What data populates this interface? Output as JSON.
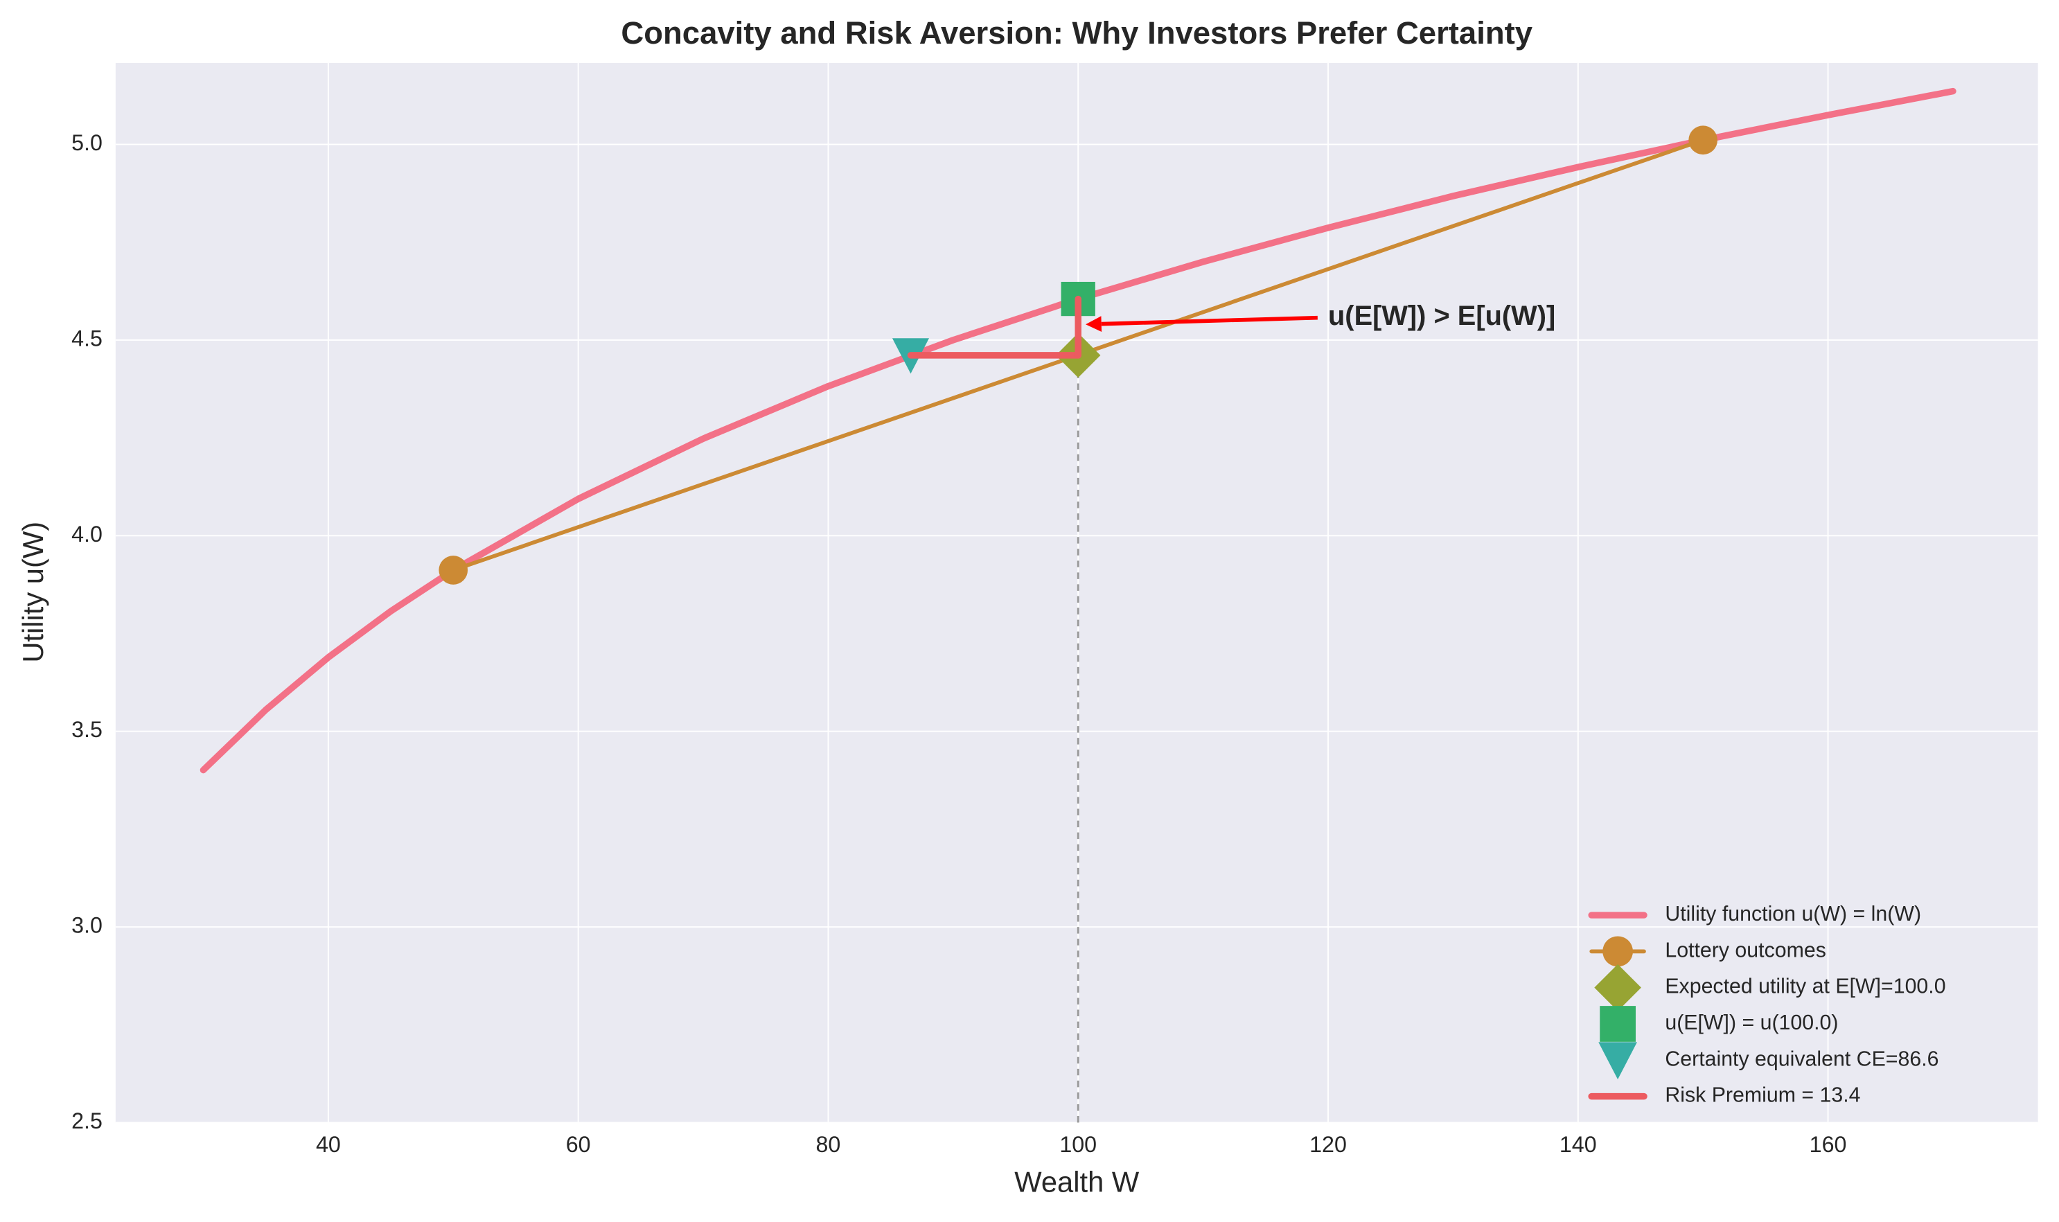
{
  "chart_data": {
    "type": "line",
    "title": "Concavity and Risk Aversion: Why Investors Prefer Certainty",
    "xlabel": "Wealth W",
    "ylabel": "Utility u(W)",
    "xlim": [
      22.98,
      176.8
    ],
    "ylim": [
      2.5,
      5.208
    ],
    "xticks": [
      40,
      60,
      80,
      100,
      120,
      140,
      160
    ],
    "yticks": [
      2.5,
      {
        "value": 3,
        "label": "3.0"
      },
      3.5,
      {
        "value": 4,
        "label": "4.0"
      },
      4.5,
      {
        "value": 5,
        "label": "5.0"
      }
    ],
    "grid": true,
    "legend": "lower right",
    "series": [
      {
        "name": "Utility function u(W) = ln(W)",
        "color": "#f37187",
        "marker": "none",
        "x": [
          30,
          35,
          40,
          45,
          50,
          60,
          70,
          80,
          90,
          100,
          110,
          120,
          130,
          140,
          150,
          160,
          170
        ],
        "values": [
          3.401,
          3.555,
          3.689,
          3.807,
          3.912,
          4.094,
          4.248,
          4.382,
          4.5,
          4.605,
          4.7,
          4.787,
          4.868,
          4.942,
          5.011,
          5.075,
          5.136
        ]
      },
      {
        "name": "Lottery outcomes",
        "color": "#cc8a34",
        "marker": "circle",
        "x": [
          50,
          150
        ],
        "values": [
          3.912,
          5.011
        ]
      },
      {
        "name": "Expected utility at E[W]=100.0",
        "color": "#97a433",
        "marker": "diamond",
        "x": [
          100
        ],
        "values": [
          4.461
        ]
      },
      {
        "name": "u(E[W]) = u(100.0)",
        "color": "#33b068",
        "marker": "square",
        "x": [
          100
        ],
        "values": [
          4.605
        ]
      },
      {
        "name": "Certainty equivalent CE=86.6",
        "color": "#36ada4",
        "marker": "triangle-down",
        "x": [
          86.6
        ],
        "values": [
          4.461
        ]
      },
      {
        "name": "Risk Premium = 13.4",
        "color": "#ec5b60",
        "marker": "none",
        "x": [
          86.6,
          100
        ],
        "values": [
          4.461,
          4.461
        ]
      },
      {
        "color": "#ec5b60",
        "marker": "none",
        "x": [
          100,
          100
        ],
        "values": [
          4.461,
          4.605
        ]
      }
    ],
    "reference_lines": [
      {
        "x": [
          100,
          100
        ],
        "values": [
          2.5,
          4.461
        ],
        "color": "#999999",
        "style": "dashed"
      }
    ],
    "annotation": {
      "text": "u(E[W]) > E[u(W)]",
      "xy": [
        100.6,
        4.54
      ],
      "xytext": [
        120,
        4.557
      ],
      "color": "#ff0000"
    }
  }
}
